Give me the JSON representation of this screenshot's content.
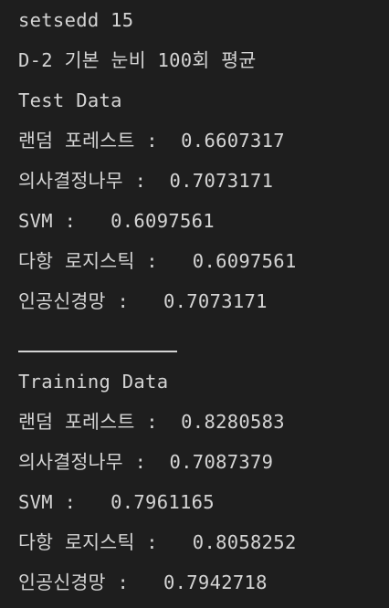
{
  "lines": {
    "header1": "setsedd 15",
    "header2": "D-2 기본 눈비 100회 평균",
    "test_title": "Test Data",
    "test_rf": "랜덤 포레스트 :  0.6607317",
    "test_dt": "의사결정나무 :  0.7073171",
    "test_svm": "SVM :   0.6097561",
    "test_lr": "다항 로지스틱 :   0.6097561",
    "test_nn": "인공신경망 :   0.7073171",
    "train_title": "Training Data",
    "train_rf": "랜덤 포레스트 :  0.8280583",
    "train_dt": "의사결정나무 :  0.7087379",
    "train_svm": "SVM :   0.7961165",
    "train_lr": "다항 로지스틱 :   0.8058252",
    "train_nn": "인공신경망 :   0.7942718"
  }
}
